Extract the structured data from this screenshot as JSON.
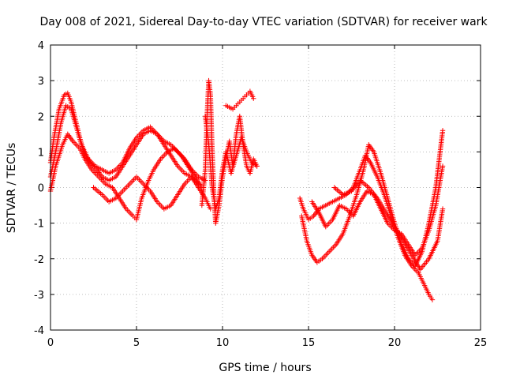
{
  "chart_data": {
    "type": "scatter",
    "title": "Day 008 of 2021, Sidereal Day-to-day VTEC variation (SDTVAR) for receiver wark",
    "xlabel": "GPS time / hours",
    "ylabel": "SDTVAR / TECUs",
    "xlim": [
      0,
      25
    ],
    "ylim": [
      -4,
      4
    ],
    "xticks": [
      "0",
      "5",
      "10",
      "15",
      "20",
      "25"
    ],
    "yticks": [
      "-4",
      "-3",
      "-2",
      "-1",
      "0",
      "1",
      "2",
      "3",
      "4"
    ],
    "grid": true,
    "marker": "plus",
    "marker_color": "#ff0000",
    "series": [
      {
        "name": "seg-a1",
        "x": [
          0.0,
          0.2,
          0.5,
          0.8,
          1.0,
          1.2,
          1.4,
          1.7,
          2.0,
          2.3,
          2.7,
          3.0,
          3.4,
          3.8,
          4.2,
          4.6,
          5.0,
          5.4,
          5.8,
          6.2,
          6.6,
          7.0,
          7.4,
          7.8,
          8.2,
          8.6,
          9.0
        ],
        "y": [
          0.7,
          1.4,
          2.2,
          2.6,
          2.65,
          2.4,
          2.0,
          1.4,
          0.9,
          0.7,
          0.5,
          0.3,
          0.2,
          0.3,
          0.6,
          0.9,
          1.2,
          1.5,
          1.6,
          1.5,
          1.3,
          1.2,
          1.0,
          0.8,
          0.5,
          0.3,
          0.2
        ]
      },
      {
        "name": "seg-a2",
        "x": [
          0.0,
          0.3,
          0.6,
          0.9,
          1.2,
          1.5,
          1.8,
          2.2,
          2.6,
          3.0,
          3.4,
          3.8,
          4.2,
          4.6,
          5.0,
          5.4,
          5.8,
          6.2,
          6.6,
          7.0,
          7.4,
          7.8,
          8.2,
          8.6
        ],
        "y": [
          0.3,
          1.0,
          1.8,
          2.3,
          2.2,
          1.7,
          1.2,
          0.8,
          0.6,
          0.5,
          0.4,
          0.5,
          0.7,
          1.1,
          1.4,
          1.6,
          1.7,
          1.5,
          1.2,
          0.9,
          0.6,
          0.4,
          0.3,
          0.1
        ]
      },
      {
        "name": "seg-a3",
        "x": [
          0.0,
          0.3,
          0.7,
          1.0,
          1.3,
          1.7,
          2.0,
          2.4,
          2.8,
          3.2,
          3.6,
          4.0,
          4.4,
          4.8,
          5.0,
          5.3,
          5.7,
          6.0,
          6.4,
          6.8,
          7.2,
          7.6,
          8.0,
          8.4,
          8.8
        ],
        "y": [
          -0.1,
          0.6,
          1.2,
          1.5,
          1.3,
          1.1,
          0.8,
          0.5,
          0.3,
          0.1,
          0.0,
          -0.3,
          -0.6,
          -0.8,
          -0.9,
          -0.3,
          0.2,
          0.5,
          0.8,
          1.0,
          1.1,
          0.9,
          0.6,
          0.3,
          0.0
        ]
      },
      {
        "name": "seg-a4",
        "x": [
          2.5,
          3.0,
          3.4,
          3.8,
          4.2,
          4.6,
          5.0,
          5.4,
          5.8,
          6.2,
          6.6,
          7.0,
          7.4,
          7.8,
          8.2,
          8.6,
          9.0,
          9.3
        ],
        "y": [
          0.0,
          -0.2,
          -0.4,
          -0.3,
          -0.1,
          0.1,
          0.3,
          0.1,
          -0.1,
          -0.4,
          -0.6,
          -0.5,
          -0.2,
          0.1,
          0.3,
          0.0,
          -0.3,
          -0.6
        ]
      },
      {
        "name": "seg-b",
        "x": [
          8.8,
          9.0,
          9.1,
          9.2,
          9.3,
          9.4,
          9.5,
          9.6,
          9.8,
          10.0,
          10.2,
          10.4,
          10.6,
          10.8,
          11.0,
          11.2,
          11.4,
          11.6,
          11.8,
          12.0
        ],
        "y": [
          -0.5,
          0.5,
          2.0,
          3.0,
          2.6,
          1.0,
          -0.2,
          -1.0,
          -0.5,
          0.3,
          0.8,
          1.3,
          0.6,
          1.5,
          2.0,
          1.2,
          0.6,
          0.4,
          0.8,
          0.6
        ]
      },
      {
        "name": "seg-b2",
        "x": [
          9.0,
          9.2,
          9.4,
          9.6,
          9.8,
          10.0,
          10.2,
          10.5,
          10.8,
          11.1,
          11.4,
          11.7,
          12.0
        ],
        "y": [
          2.0,
          1.2,
          0.0,
          -0.6,
          -0.3,
          0.5,
          1.0,
          0.4,
          0.9,
          1.4,
          1.0,
          0.7,
          0.6
        ]
      },
      {
        "name": "seg-b3",
        "x": [
          10.2,
          10.4,
          10.6,
          10.8,
          11.0,
          11.2,
          11.4,
          11.6,
          11.8
        ],
        "y": [
          2.3,
          2.25,
          2.2,
          2.3,
          2.4,
          2.5,
          2.6,
          2.7,
          2.5
        ]
      },
      {
        "name": "seg-c1",
        "x": [
          14.5,
          14.7,
          15.0,
          15.3,
          15.6,
          16.0,
          16.4,
          16.8,
          17.2,
          17.6,
          18.0,
          18.3,
          18.6,
          19.0,
          19.4,
          19.8,
          20.2,
          20.6,
          21.0,
          21.4,
          21.7,
          22.0,
          22.2
        ],
        "y": [
          -0.3,
          -0.6,
          -0.9,
          -0.8,
          -0.6,
          -0.5,
          -0.4,
          -0.3,
          -0.2,
          0.0,
          0.5,
          0.9,
          0.7,
          0.3,
          -0.2,
          -0.8,
          -1.4,
          -1.9,
          -2.2,
          -2.4,
          -2.7,
          -3.0,
          -3.15
        ]
      },
      {
        "name": "seg-c2",
        "x": [
          14.6,
          14.9,
          15.2,
          15.5,
          15.8,
          16.2,
          16.6,
          17.0,
          17.4,
          17.8,
          18.2,
          18.5,
          18.8,
          19.2,
          19.6,
          20.0,
          20.4,
          20.8,
          21.2,
          21.6,
          22.0,
          22.4,
          22.8
        ],
        "y": [
          -0.8,
          -1.5,
          -1.9,
          -2.1,
          -2.0,
          -1.8,
          -1.6,
          -1.3,
          -0.8,
          -0.2,
          0.5,
          1.2,
          1.0,
          0.4,
          -0.3,
          -1.0,
          -1.6,
          -2.0,
          -2.2,
          -1.8,
          -1.0,
          0.0,
          1.6
        ]
      },
      {
        "name": "seg-c3",
        "x": [
          15.2,
          15.6,
          16.0,
          16.4,
          16.8,
          17.2,
          17.6,
          18.0,
          18.4,
          18.8,
          19.2,
          19.6,
          20.0,
          20.4,
          20.8,
          21.2,
          21.6,
          22.0,
          22.4,
          22.8
        ],
        "y": [
          -0.4,
          -0.7,
          -1.1,
          -0.9,
          -0.5,
          -0.6,
          -0.8,
          -0.4,
          -0.1,
          -0.2,
          -0.6,
          -1.0,
          -1.2,
          -1.3,
          -1.6,
          -1.9,
          -1.7,
          -1.2,
          -0.5,
          0.6
        ]
      },
      {
        "name": "seg-c4",
        "x": [
          16.5,
          17.0,
          17.5,
          18.0,
          18.5,
          19.0,
          19.5,
          20.0,
          20.5,
          21.0,
          21.5,
          22.0,
          22.5,
          22.8
        ],
        "y": [
          0.0,
          -0.2,
          -0.1,
          0.2,
          0.0,
          -0.3,
          -0.7,
          -1.1,
          -1.5,
          -1.9,
          -2.3,
          -2.0,
          -1.5,
          -0.6
        ]
      }
    ]
  }
}
